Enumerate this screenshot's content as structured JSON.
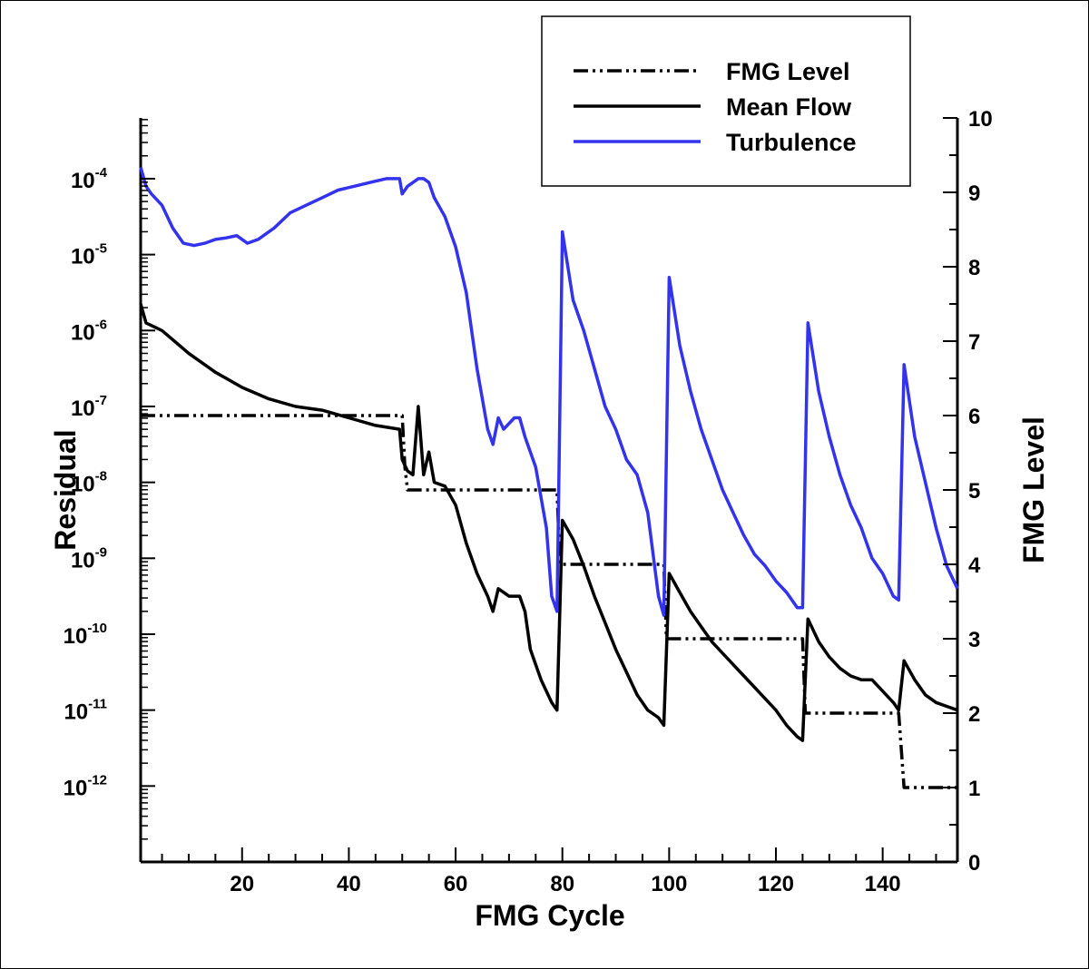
{
  "chart_data": {
    "type": "line",
    "xlabel": "FMG Cycle",
    "ylabel": "Residual",
    "y2label": "FMG Level",
    "xlim": [
      1,
      154
    ],
    "ylim_log": [
      -13,
      -3.2
    ],
    "y2lim": [
      0,
      10
    ],
    "x_ticks": [
      20,
      40,
      60,
      80,
      100,
      120,
      140
    ],
    "y_ticks": [
      {
        "base": "10",
        "exp": "-4",
        "value": -4
      },
      {
        "base": "10",
        "exp": "-5",
        "value": -5
      },
      {
        "base": "10",
        "exp": "-6",
        "value": -6
      },
      {
        "base": "10",
        "exp": "-7",
        "value": -7
      },
      {
        "base": "10",
        "exp": "-8",
        "value": -8
      },
      {
        "base": "10",
        "exp": "-9",
        "value": -9
      },
      {
        "base": "10",
        "exp": "-10",
        "value": -10
      },
      {
        "base": "10",
        "exp": "-11",
        "value": -11
      },
      {
        "base": "10",
        "exp": "-12",
        "value": -12
      }
    ],
    "y2_ticks": [
      "0",
      "1",
      "2",
      "3",
      "4",
      "5",
      "6",
      "7",
      "8",
      "9",
      "10"
    ],
    "legend_position": "top-right",
    "series": [
      {
        "name": "FMG Level",
        "axis": "right",
        "style": "dash-dot-dot",
        "color": "#000000",
        "points": [
          [
            1,
            6
          ],
          [
            50,
            6
          ],
          [
            50.5,
            5.3
          ],
          [
            51,
            5
          ],
          [
            79,
            5
          ],
          [
            79.5,
            4
          ],
          [
            99,
            4
          ],
          [
            99.5,
            3
          ],
          [
            125,
            3
          ],
          [
            125.5,
            2
          ],
          [
            143,
            2
          ],
          [
            144,
            1
          ],
          [
            154,
            1
          ]
        ]
      },
      {
        "name": "Mean Flow",
        "axis": "left",
        "style": "solid",
        "color": "#000000",
        "points": [
          [
            1,
            -5.65
          ],
          [
            2,
            -5.9
          ],
          [
            5,
            -6.0
          ],
          [
            10,
            -6.3
          ],
          [
            15,
            -6.55
          ],
          [
            20,
            -6.75
          ],
          [
            25,
            -6.9
          ],
          [
            30,
            -7.0
          ],
          [
            35,
            -7.05
          ],
          [
            40,
            -7.15
          ],
          [
            45,
            -7.25
          ],
          [
            49.5,
            -7.3
          ],
          [
            50,
            -7.7
          ],
          [
            51,
            -7.85
          ],
          [
            52,
            -7.9
          ],
          [
            53,
            -7.0
          ],
          [
            54,
            -7.9
          ],
          [
            55,
            -7.6
          ],
          [
            56,
            -8.0
          ],
          [
            58,
            -8.05
          ],
          [
            60,
            -8.3
          ],
          [
            62,
            -8.8
          ],
          [
            64,
            -9.2
          ],
          [
            66,
            -9.5
          ],
          [
            67,
            -9.7
          ],
          [
            68,
            -9.4
          ],
          [
            70,
            -9.5
          ],
          [
            72,
            -9.5
          ],
          [
            73,
            -9.7
          ],
          [
            74,
            -10.2
          ],
          [
            76,
            -10.6
          ],
          [
            78,
            -10.9
          ],
          [
            79,
            -11.0
          ],
          [
            80,
            -8.5
          ],
          [
            82,
            -8.75
          ],
          [
            84,
            -9.1
          ],
          [
            86,
            -9.5
          ],
          [
            88,
            -9.85
          ],
          [
            90,
            -10.2
          ],
          [
            92,
            -10.5
          ],
          [
            94,
            -10.8
          ],
          [
            96,
            -11.0
          ],
          [
            98,
            -11.1
          ],
          [
            99,
            -11.2
          ],
          [
            100,
            -9.2
          ],
          [
            102,
            -9.45
          ],
          [
            104,
            -9.7
          ],
          [
            106,
            -9.9
          ],
          [
            108,
            -10.1
          ],
          [
            110,
            -10.25
          ],
          [
            112,
            -10.4
          ],
          [
            114,
            -10.55
          ],
          [
            116,
            -10.7
          ],
          [
            118,
            -10.85
          ],
          [
            120,
            -11.0
          ],
          [
            122,
            -11.2
          ],
          [
            124,
            -11.35
          ],
          [
            125,
            -11.4
          ],
          [
            126,
            -9.8
          ],
          [
            128,
            -10.1
          ],
          [
            130,
            -10.3
          ],
          [
            132,
            -10.45
          ],
          [
            134,
            -10.55
          ],
          [
            136,
            -10.6
          ],
          [
            138,
            -10.6
          ],
          [
            140,
            -10.75
          ],
          [
            142,
            -10.9
          ],
          [
            143,
            -11.0
          ],
          [
            144,
            -10.35
          ],
          [
            146,
            -10.6
          ],
          [
            148,
            -10.8
          ],
          [
            150,
            -10.9
          ],
          [
            152,
            -10.95
          ],
          [
            154,
            -11.0
          ]
        ]
      },
      {
        "name": "Turbulence",
        "axis": "left",
        "style": "solid",
        "color": "#3333ee",
        "points": [
          [
            1,
            -3.85
          ],
          [
            2,
            -4.1
          ],
          [
            3,
            -4.2
          ],
          [
            5,
            -4.35
          ],
          [
            7,
            -4.65
          ],
          [
            9,
            -4.85
          ],
          [
            11,
            -4.88
          ],
          [
            13,
            -4.85
          ],
          [
            15,
            -4.8
          ],
          [
            17,
            -4.78
          ],
          [
            19,
            -4.75
          ],
          [
            21,
            -4.85
          ],
          [
            23,
            -4.8
          ],
          [
            26,
            -4.65
          ],
          [
            29,
            -4.45
          ],
          [
            32,
            -4.35
          ],
          [
            35,
            -4.25
          ],
          [
            38,
            -4.15
          ],
          [
            41,
            -4.1
          ],
          [
            44,
            -4.05
          ],
          [
            47,
            -4.0
          ],
          [
            49.5,
            -4.0
          ],
          [
            50,
            -4.2
          ],
          [
            51,
            -4.1
          ],
          [
            53,
            -4.0
          ],
          [
            54,
            -4.0
          ],
          [
            55,
            -4.05
          ],
          [
            56,
            -4.25
          ],
          [
            58,
            -4.5
          ],
          [
            60,
            -4.9
          ],
          [
            62,
            -5.5
          ],
          [
            64,
            -6.5
          ],
          [
            66,
            -7.3
          ],
          [
            67,
            -7.5
          ],
          [
            68,
            -7.15
          ],
          [
            69,
            -7.3
          ],
          [
            71,
            -7.15
          ],
          [
            72,
            -7.15
          ],
          [
            73,
            -7.4
          ],
          [
            75,
            -7.8
          ],
          [
            77,
            -8.6
          ],
          [
            78,
            -9.5
          ],
          [
            79,
            -9.7
          ],
          [
            80,
            -4.7
          ],
          [
            82,
            -5.6
          ],
          [
            84,
            -6.0
          ],
          [
            86,
            -6.5
          ],
          [
            88,
            -7.0
          ],
          [
            90,
            -7.3
          ],
          [
            92,
            -7.7
          ],
          [
            94,
            -7.9
          ],
          [
            96,
            -8.4
          ],
          [
            98,
            -9.5
          ],
          [
            99,
            -9.75
          ],
          [
            100,
            -5.3
          ],
          [
            102,
            -6.2
          ],
          [
            104,
            -6.8
          ],
          [
            106,
            -7.3
          ],
          [
            108,
            -7.7
          ],
          [
            110,
            -8.1
          ],
          [
            112,
            -8.4
          ],
          [
            114,
            -8.7
          ],
          [
            116,
            -8.95
          ],
          [
            118,
            -9.1
          ],
          [
            120,
            -9.3
          ],
          [
            122,
            -9.45
          ],
          [
            124,
            -9.65
          ],
          [
            125,
            -9.65
          ],
          [
            126,
            -5.9
          ],
          [
            128,
            -6.8
          ],
          [
            130,
            -7.4
          ],
          [
            132,
            -7.9
          ],
          [
            134,
            -8.3
          ],
          [
            136,
            -8.6
          ],
          [
            138,
            -9.0
          ],
          [
            140,
            -9.2
          ],
          [
            142,
            -9.5
          ],
          [
            143,
            -9.55
          ],
          [
            144,
            -6.45
          ],
          [
            146,
            -7.4
          ],
          [
            148,
            -8.0
          ],
          [
            150,
            -8.6
          ],
          [
            152,
            -9.1
          ],
          [
            154,
            -9.4
          ]
        ]
      }
    ]
  }
}
